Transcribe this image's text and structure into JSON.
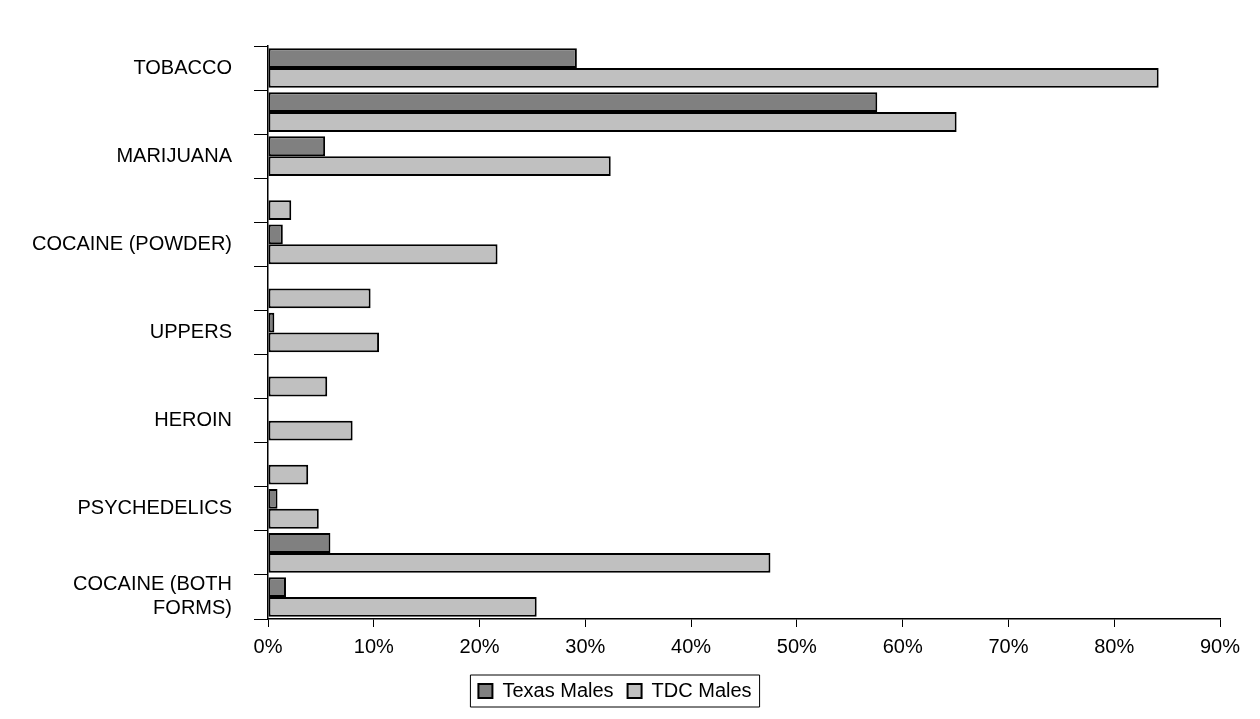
{
  "chart_data": {
    "type": "bar",
    "orientation": "horizontal",
    "categories": [
      "TOBACCO",
      null,
      "MARIJUANA",
      null,
      "COCAINE (POWDER)",
      null,
      "UPPERS",
      null,
      "HEROIN",
      null,
      "PSYCHEDELICS",
      null,
      "COCAINE (BOTH FORMS)"
    ],
    "series": [
      {
        "name": "Texas Males",
        "color": "#808080",
        "values": [
          29.2,
          57.6,
          5.4,
          null,
          1.4,
          null,
          0.6,
          null,
          null,
          null,
          0.9,
          5.9,
          1.7
        ]
      },
      {
        "name": "TDC Males",
        "color": "#c0c0c0",
        "values": [
          84.2,
          65.1,
          32.4,
          2.2,
          21.7,
          9.7,
          10.5,
          5.6,
          8.0,
          3.8,
          4.8,
          47.5,
          25.4
        ]
      }
    ],
    "xlim": [
      0,
      90
    ],
    "xticks": [
      {
        "value": 0,
        "label": "0%"
      },
      {
        "value": 10,
        "label": "10%"
      },
      {
        "value": 20,
        "label": "20%"
      },
      {
        "value": 30,
        "label": "30%"
      },
      {
        "value": 40,
        "label": "40%"
      },
      {
        "value": 50,
        "label": "50%"
      },
      {
        "value": 60,
        "label": "60%"
      },
      {
        "value": 70,
        "label": "70%"
      },
      {
        "value": 80,
        "label": "80%"
      },
      {
        "value": 90,
        "label": "90%"
      }
    ],
    "grid": false,
    "legend": "bottom"
  }
}
